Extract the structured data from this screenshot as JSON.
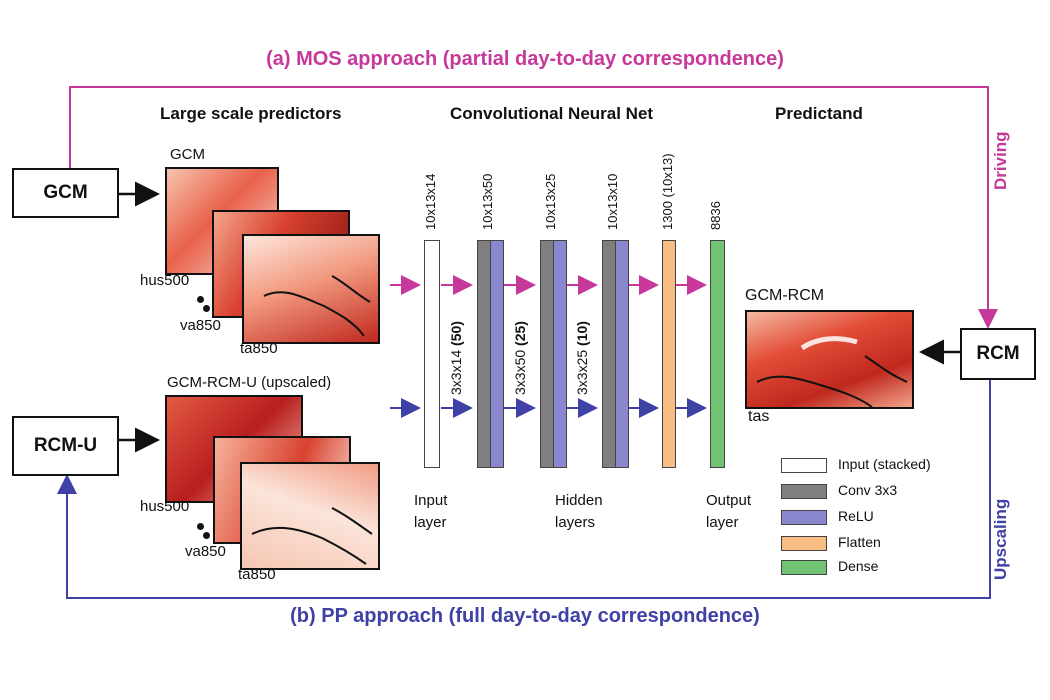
{
  "titles": {
    "mos": "(a) MOS approach (partial day-to-day correspondence)",
    "pp": "(b) PP approach (full day-to-day correspondence)",
    "driving": "Driving",
    "upscaling": "Upscaling"
  },
  "headers": {
    "predictors": "Large scale predictors",
    "cnn": "Convolutional Neural Net",
    "predictand": "Predictand"
  },
  "boxes": {
    "gcm": "GCM",
    "rcm_u": "RCM-U",
    "rcm": "RCM"
  },
  "predictors_top": {
    "label": "GCM",
    "vars": [
      "hus500",
      "va850",
      "ta850"
    ]
  },
  "predictors_bottom": {
    "label": "GCM-RCM-U (upscaled)",
    "vars": [
      "hus500",
      "va850",
      "ta850"
    ]
  },
  "predictand": {
    "label": "GCM-RCM",
    "var": "tas"
  },
  "layer_dims": [
    "10x13x14",
    "10x13x50",
    "10x13x25",
    "10x13x10",
    "1300 (10x13)",
    "8836"
  ],
  "kernel_dims": [
    {
      "prefix": "3x3x14 ",
      "bold": "(50)"
    },
    {
      "prefix": "3x3x50 ",
      "bold": "(25)"
    },
    {
      "prefix": "3x3x25 ",
      "bold": "(10)"
    }
  ],
  "layer_captions": {
    "input": [
      "Input",
      "layer"
    ],
    "hidden": [
      "Hidden",
      "layers"
    ],
    "output": [
      "Output",
      "layer"
    ]
  },
  "legend": [
    {
      "label": "Input (stacked)",
      "color": "#ffffff"
    },
    {
      "label": "Conv 3x3",
      "color": "#7f7f7f"
    },
    {
      "label": "ReLU",
      "color": "#8b87cf"
    },
    {
      "label": "Flatten",
      "color": "#f7bd84"
    },
    {
      "label": "Dense",
      "color": "#72c274"
    }
  ],
  "colors": {
    "mos": "#c6399b",
    "pp": "#3f41a6",
    "map_dark": "#c0281e",
    "map_light": "#fbe0d6"
  }
}
